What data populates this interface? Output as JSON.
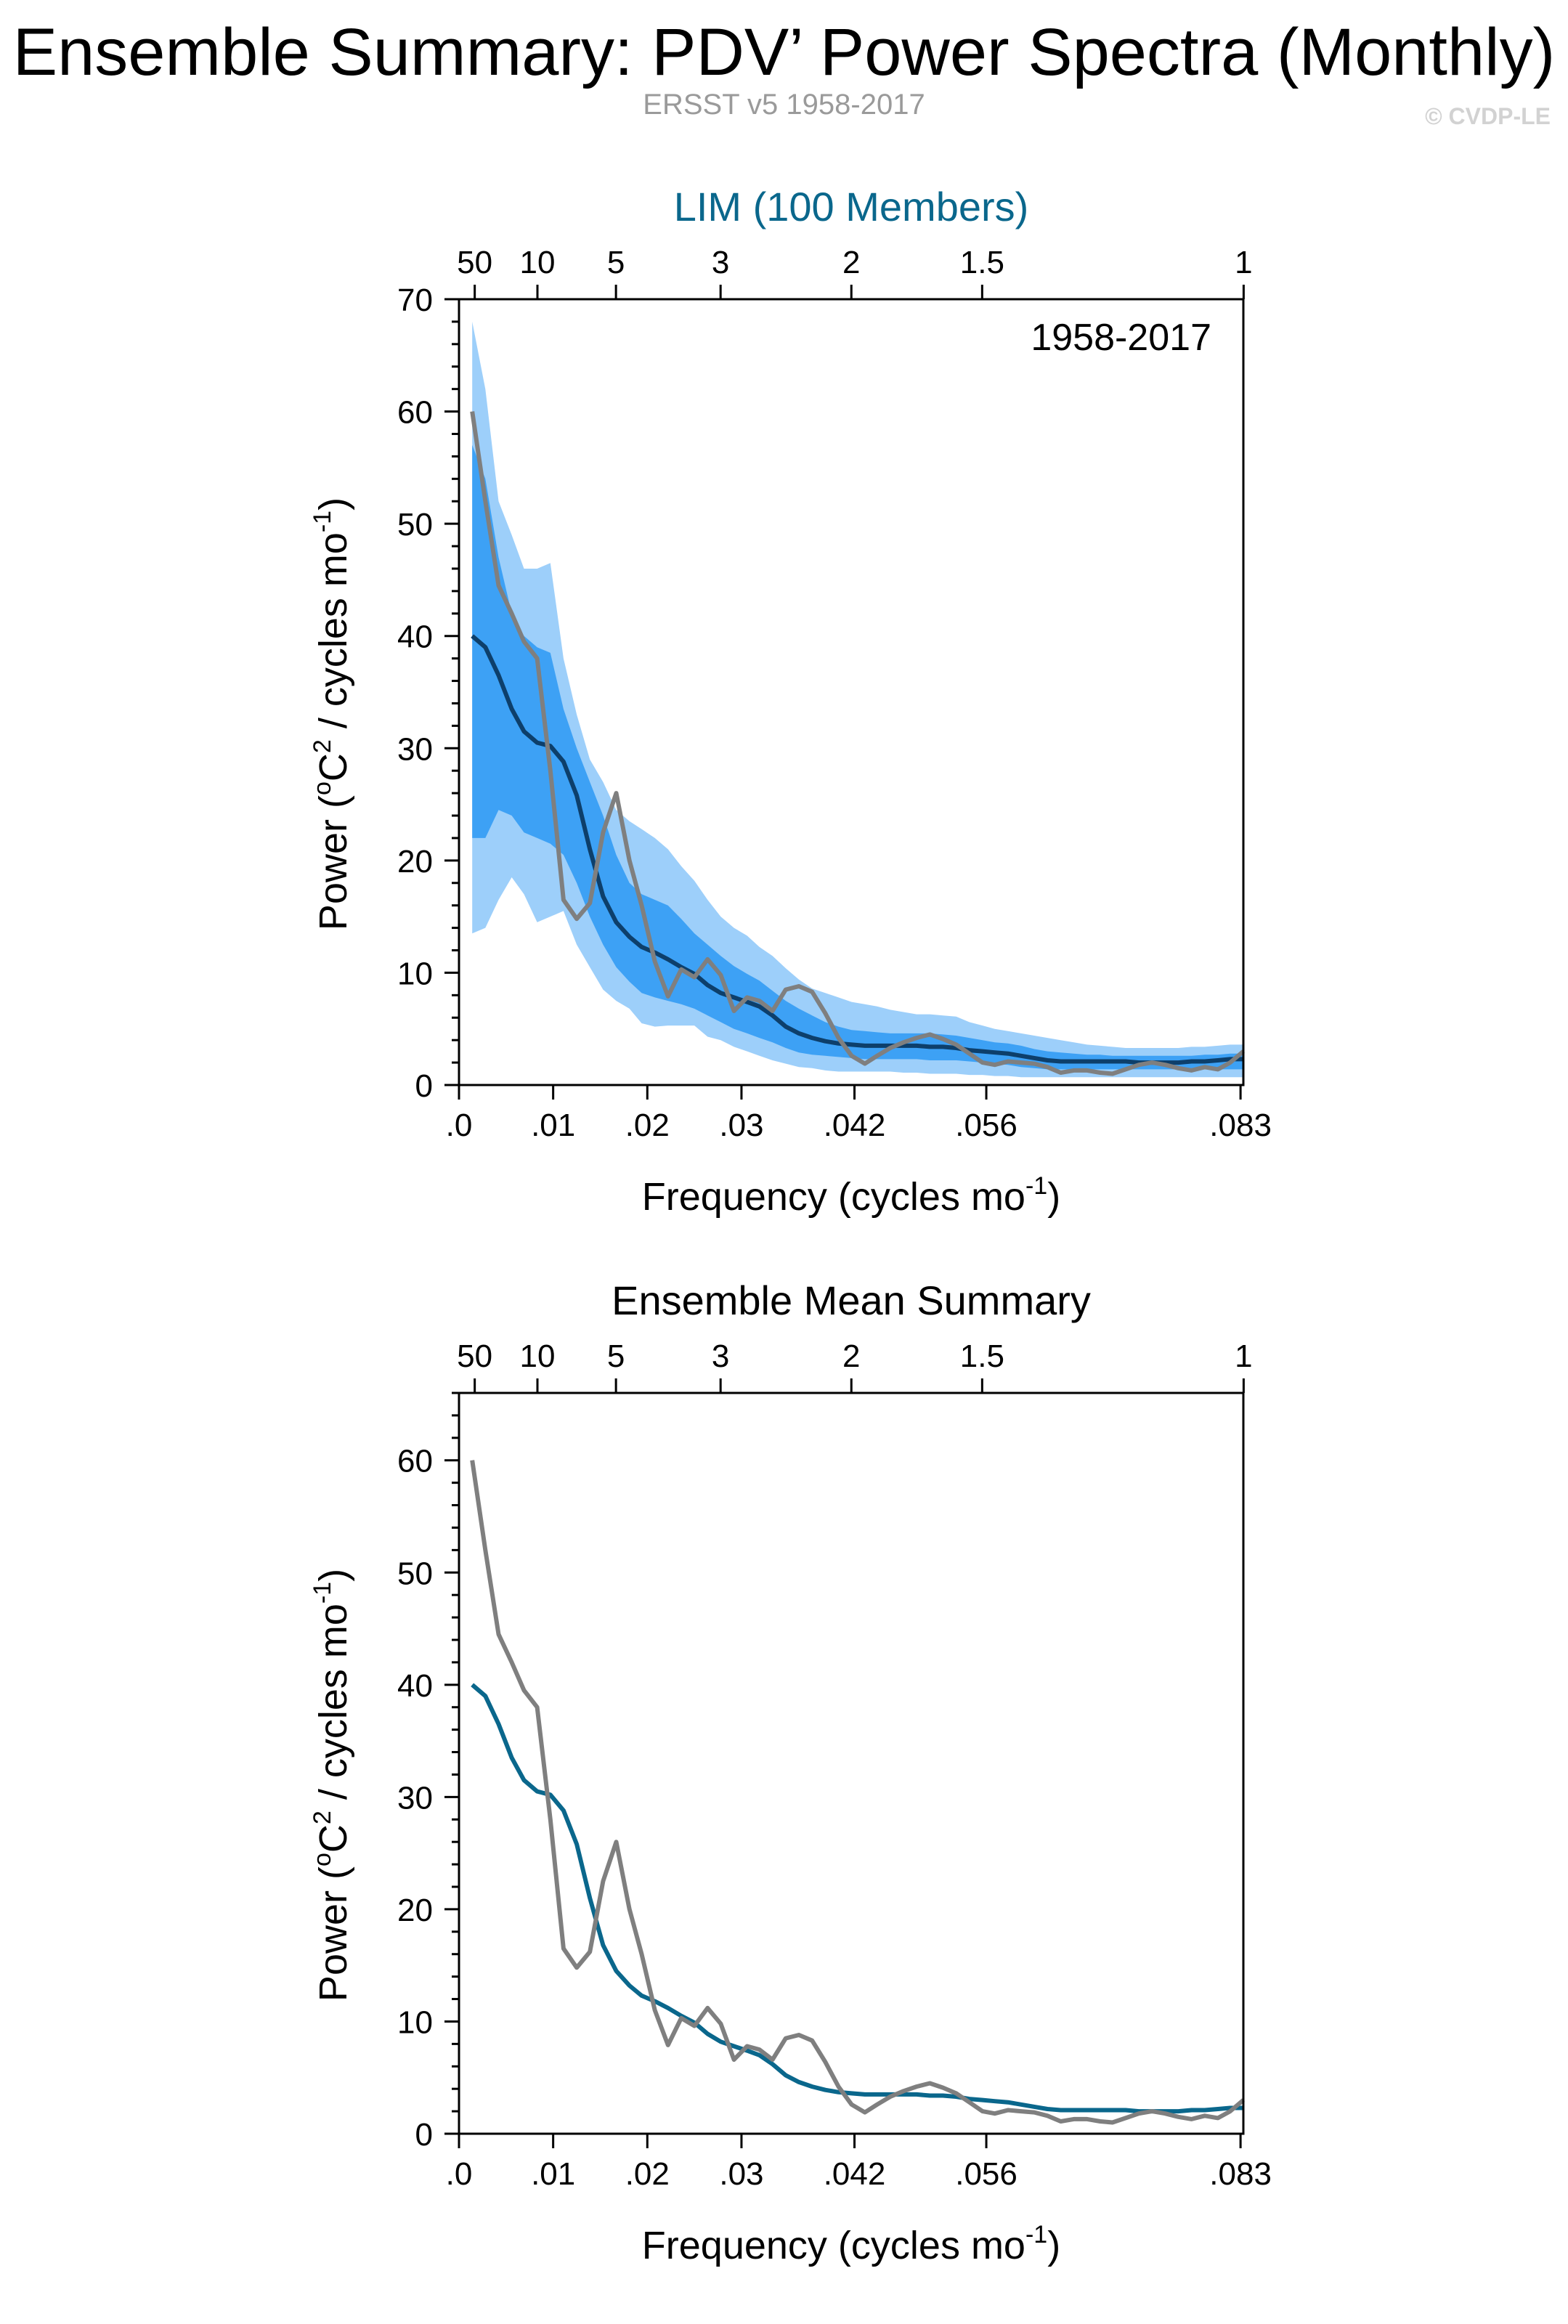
{
  "header": {
    "title": "Ensemble Summary: PDV’ Power Spectra (Monthly)",
    "subtitle": "ERSST v5 1958-2017",
    "copyright": "© CVDP-LE"
  },
  "colors": {
    "ensemble_mean": "#0a678c",
    "ensemble_mean_dark": "#0d3f6b",
    "observation": "#7f7f7f",
    "band_outer": "#9dcffa",
    "band_inner": "#3da1f5",
    "top_title_panel1": "#0a678c"
  },
  "chart_data": [
    {
      "type": "area",
      "title": "LIM (100 Members)",
      "annotation": "1958-2017",
      "xlabel": "Frequency (cycles mo",
      "xlabel_sup": "-1",
      "xlabel_end": ")",
      "ylabel": "Power (",
      "ylabel_sup1": "o",
      "ylabel_mid": "C",
      "ylabel_sup2": "2",
      "ylabel_mid2": " / cycles mo",
      "ylabel_sup3": "-1",
      "ylabel_end": ")",
      "xlim": [
        0,
        0.0833
      ],
      "ylim": [
        0,
        70
      ],
      "yticks": [
        0,
        10,
        20,
        30,
        40,
        50,
        60,
        70
      ],
      "xticks": [
        {
          "value": 0.0,
          "label": ".0"
        },
        {
          "value": 0.01,
          "label": ".01"
        },
        {
          "value": 0.02,
          "label": ".02"
        },
        {
          "value": 0.03,
          "label": ".03"
        },
        {
          "value": 0.042,
          "label": ".042"
        },
        {
          "value": 0.056,
          "label": ".056"
        },
        {
          "value": 0.083,
          "label": ".083"
        }
      ],
      "period_ticks": [
        {
          "value": 0.00167,
          "label": "50"
        },
        {
          "value": 0.00833,
          "label": "10"
        },
        {
          "value": 0.01667,
          "label": "5"
        },
        {
          "value": 0.02778,
          "label": "3"
        },
        {
          "value": 0.04167,
          "label": "2"
        },
        {
          "value": 0.05556,
          "label": "1.5"
        },
        {
          "value": 0.08333,
          "label": "1"
        }
      ],
      "x": [
        0.0014,
        0.0028,
        0.0042,
        0.0056,
        0.0069,
        0.0083,
        0.0097,
        0.0111,
        0.0125,
        0.0139,
        0.0153,
        0.0167,
        0.0181,
        0.0194,
        0.0208,
        0.0222,
        0.0236,
        0.025,
        0.0264,
        0.0278,
        0.0292,
        0.0306,
        0.0319,
        0.0333,
        0.0347,
        0.0361,
        0.0375,
        0.0389,
        0.0403,
        0.0417,
        0.0431,
        0.0444,
        0.0458,
        0.0472,
        0.0486,
        0.05,
        0.0514,
        0.0528,
        0.0542,
        0.0556,
        0.0569,
        0.0583,
        0.0597,
        0.0611,
        0.0625,
        0.0639,
        0.0653,
        0.0667,
        0.0681,
        0.0694,
        0.0708,
        0.0722,
        0.0736,
        0.075,
        0.0764,
        0.0778,
        0.0792,
        0.0806,
        0.0819,
        0.0833
      ],
      "series": [
        {
          "name": "ensemble_mean",
          "values": [
            40,
            39,
            36.5,
            33.5,
            31.5,
            30.5,
            30.2,
            28.8,
            25.8,
            21,
            16.8,
            14.5,
            13.2,
            12.3,
            11.8,
            11.2,
            10.5,
            9.9,
            8.9,
            8.2,
            7.8,
            7.4,
            7,
            6.2,
            5.2,
            4.6,
            4.2,
            3.9,
            3.7,
            3.6,
            3.5,
            3.5,
            3.5,
            3.5,
            3.5,
            3.4,
            3.4,
            3.3,
            3.1,
            3,
            2.9,
            2.8,
            2.6,
            2.4,
            2.2,
            2.1,
            2.1,
            2.1,
            2.1,
            2.1,
            2.1,
            2,
            2,
            2,
            2,
            2.1,
            2.1,
            2.2,
            2.3,
            2.3
          ]
        },
        {
          "name": "observations",
          "values": [
            60,
            52,
            44.5,
            42,
            39.5,
            38,
            28,
            16.5,
            14.8,
            16.2,
            22.5,
            26,
            20,
            16,
            11,
            7.9,
            10.3,
            9.6,
            11.2,
            9.8,
            6.6,
            7.8,
            7.5,
            6.6,
            8.5,
            8.8,
            8.3,
            6.4,
            4.2,
            2.6,
            1.9,
            2.6,
            3.3,
            3.8,
            4.2,
            4.5,
            4.1,
            3.6,
            2.8,
            2.0,
            1.8,
            2.1,
            2.0,
            1.9,
            1.6,
            1.1,
            1.3,
            1.3,
            1.1,
            1.0,
            1.4,
            1.8,
            2.0,
            1.8,
            1.5,
            1.3,
            1.6,
            1.4,
            2.0,
            3.0
          ]
        }
      ],
      "bands": {
        "outer_upper": [
          68,
          62,
          52,
          49,
          46,
          46,
          46.5,
          38,
          33,
          29,
          27,
          24.5,
          23.5,
          22.8,
          22,
          21,
          19.5,
          18.2,
          16.5,
          15,
          14,
          13.3,
          12.3,
          11.5,
          10.4,
          9.4,
          8.6,
          8.2,
          7.8,
          7.4,
          7.2,
          7.0,
          6.7,
          6.5,
          6.3,
          6.3,
          6.2,
          6.1,
          5.6,
          5.3,
          5.0,
          4.8,
          4.6,
          4.4,
          4.2,
          4.0,
          3.8,
          3.6,
          3.5,
          3.4,
          3.3,
          3.3,
          3.3,
          3.3,
          3.3,
          3.4,
          3.4,
          3.5,
          3.6,
          3.6
        ],
        "inner_upper": [
          57,
          54,
          47,
          42,
          40,
          39,
          38.5,
          33.5,
          30,
          27,
          24,
          20.5,
          18,
          17,
          16.5,
          16,
          14.8,
          13.5,
          12.5,
          11.5,
          10.6,
          9.9,
          9.3,
          8.4,
          7.5,
          6.8,
          6.2,
          5.6,
          5.2,
          4.9,
          4.8,
          4.7,
          4.6,
          4.6,
          4.6,
          4.6,
          4.5,
          4.4,
          4.2,
          4.0,
          3.8,
          3.7,
          3.5,
          3.2,
          3.0,
          2.9,
          2.8,
          2.7,
          2.7,
          2.6,
          2.6,
          2.6,
          2.6,
          2.6,
          2.6,
          2.6,
          2.7,
          2.7,
          2.8,
          2.8
        ],
        "inner_lower": [
          22,
          22,
          24.5,
          24,
          22.5,
          22,
          21.5,
          20.5,
          18,
          15,
          12.5,
          10.5,
          9.2,
          8.2,
          7.8,
          7.5,
          7.2,
          6.8,
          6.2,
          5.6,
          5.0,
          4.6,
          4.2,
          3.8,
          3.3,
          2.9,
          2.7,
          2.6,
          2.5,
          2.4,
          2.3,
          2.3,
          2.3,
          2.3,
          2.3,
          2.2,
          2.2,
          2.2,
          2.1,
          2.0,
          1.9,
          1.8,
          1.6,
          1.5,
          1.4,
          1.4,
          1.4,
          1.4,
          1.4,
          1.4,
          1.4,
          1.4,
          1.4,
          1.4,
          1.4,
          1.4,
          1.4,
          1.4,
          1.4,
          1.4
        ],
        "outer_lower": [
          13.5,
          14,
          16.5,
          18.5,
          17,
          14.5,
          15,
          15.5,
          12.5,
          10.5,
          8.5,
          7.5,
          6.8,
          5.5,
          5.2,
          5.3,
          5.3,
          5.3,
          4.3,
          4.0,
          3.4,
          3.0,
          2.6,
          2.2,
          1.9,
          1.6,
          1.5,
          1.3,
          1.2,
          1.2,
          1.2,
          1.2,
          1.2,
          1.1,
          1.1,
          1.0,
          1.0,
          1.0,
          0.9,
          0.9,
          0.8,
          0.8,
          0.7,
          0.7,
          0.7,
          0.7,
          0.7,
          0.7,
          0.7,
          0.7,
          0.7,
          0.7,
          0.7,
          0.7,
          0.7,
          0.7,
          0.7,
          0.7,
          0.7,
          0.7
        ]
      }
    },
    {
      "type": "line",
      "title": "Ensemble Mean Summary",
      "xlabel": "Frequency (cycles mo",
      "xlabel_sup": "-1",
      "xlabel_end": ")",
      "ylabel": "Power (",
      "ylabel_sup1": "o",
      "ylabel_mid": "C",
      "ylabel_sup2": "2",
      "ylabel_mid2": " / cycles mo",
      "ylabel_sup3": "-1",
      "ylabel_end": ")",
      "xlim": [
        0,
        0.0833
      ],
      "ylim": [
        0,
        66
      ],
      "yticks": [
        0,
        10,
        20,
        30,
        40,
        50,
        60
      ],
      "xticks": [
        {
          "value": 0.0,
          "label": ".0"
        },
        {
          "value": 0.01,
          "label": ".01"
        },
        {
          "value": 0.02,
          "label": ".02"
        },
        {
          "value": 0.03,
          "label": ".03"
        },
        {
          "value": 0.042,
          "label": ".042"
        },
        {
          "value": 0.056,
          "label": ".056"
        },
        {
          "value": 0.083,
          "label": ".083"
        }
      ],
      "period_ticks": [
        {
          "value": 0.00167,
          "label": "50"
        },
        {
          "value": 0.00833,
          "label": "10"
        },
        {
          "value": 0.01667,
          "label": "5"
        },
        {
          "value": 0.02778,
          "label": "3"
        },
        {
          "value": 0.04167,
          "label": "2"
        },
        {
          "value": 0.05556,
          "label": "1.5"
        },
        {
          "value": 0.08333,
          "label": "1"
        }
      ],
      "x": [
        0.0014,
        0.0028,
        0.0042,
        0.0056,
        0.0069,
        0.0083,
        0.0097,
        0.0111,
        0.0125,
        0.0139,
        0.0153,
        0.0167,
        0.0181,
        0.0194,
        0.0208,
        0.0222,
        0.0236,
        0.025,
        0.0264,
        0.0278,
        0.0292,
        0.0306,
        0.0319,
        0.0333,
        0.0347,
        0.0361,
        0.0375,
        0.0389,
        0.0403,
        0.0417,
        0.0431,
        0.0444,
        0.0458,
        0.0472,
        0.0486,
        0.05,
        0.0514,
        0.0528,
        0.0542,
        0.0556,
        0.0569,
        0.0583,
        0.0597,
        0.0611,
        0.0625,
        0.0639,
        0.0653,
        0.0667,
        0.0681,
        0.0694,
        0.0708,
        0.0722,
        0.0736,
        0.075,
        0.0764,
        0.0778,
        0.0792,
        0.0806,
        0.0819,
        0.0833
      ],
      "series": [
        {
          "name": "ensemble_mean",
          "values": [
            40,
            39,
            36.5,
            33.5,
            31.5,
            30.5,
            30.2,
            28.8,
            25.8,
            21,
            16.8,
            14.5,
            13.2,
            12.3,
            11.8,
            11.2,
            10.5,
            9.9,
            8.9,
            8.2,
            7.8,
            7.4,
            7,
            6.2,
            5.2,
            4.6,
            4.2,
            3.9,
            3.7,
            3.6,
            3.5,
            3.5,
            3.5,
            3.5,
            3.5,
            3.4,
            3.4,
            3.3,
            3.1,
            3,
            2.9,
            2.8,
            2.6,
            2.4,
            2.2,
            2.1,
            2.1,
            2.1,
            2.1,
            2.1,
            2.1,
            2,
            2,
            2,
            2,
            2.1,
            2.1,
            2.2,
            2.3,
            2.3
          ]
        },
        {
          "name": "observations",
          "values": [
            60,
            52,
            44.5,
            42,
            39.5,
            38,
            28,
            16.5,
            14.8,
            16.2,
            22.5,
            26,
            20,
            16,
            11,
            7.9,
            10.3,
            9.6,
            11.2,
            9.8,
            6.6,
            7.8,
            7.5,
            6.6,
            8.5,
            8.8,
            8.3,
            6.4,
            4.2,
            2.6,
            1.9,
            2.6,
            3.3,
            3.8,
            4.2,
            4.5,
            4.1,
            3.6,
            2.8,
            2.0,
            1.8,
            2.1,
            2.0,
            1.9,
            1.6,
            1.1,
            1.3,
            1.3,
            1.1,
            1.0,
            1.4,
            1.8,
            2.0,
            1.8,
            1.5,
            1.3,
            1.6,
            1.4,
            2.0,
            3.0
          ]
        }
      ]
    }
  ]
}
